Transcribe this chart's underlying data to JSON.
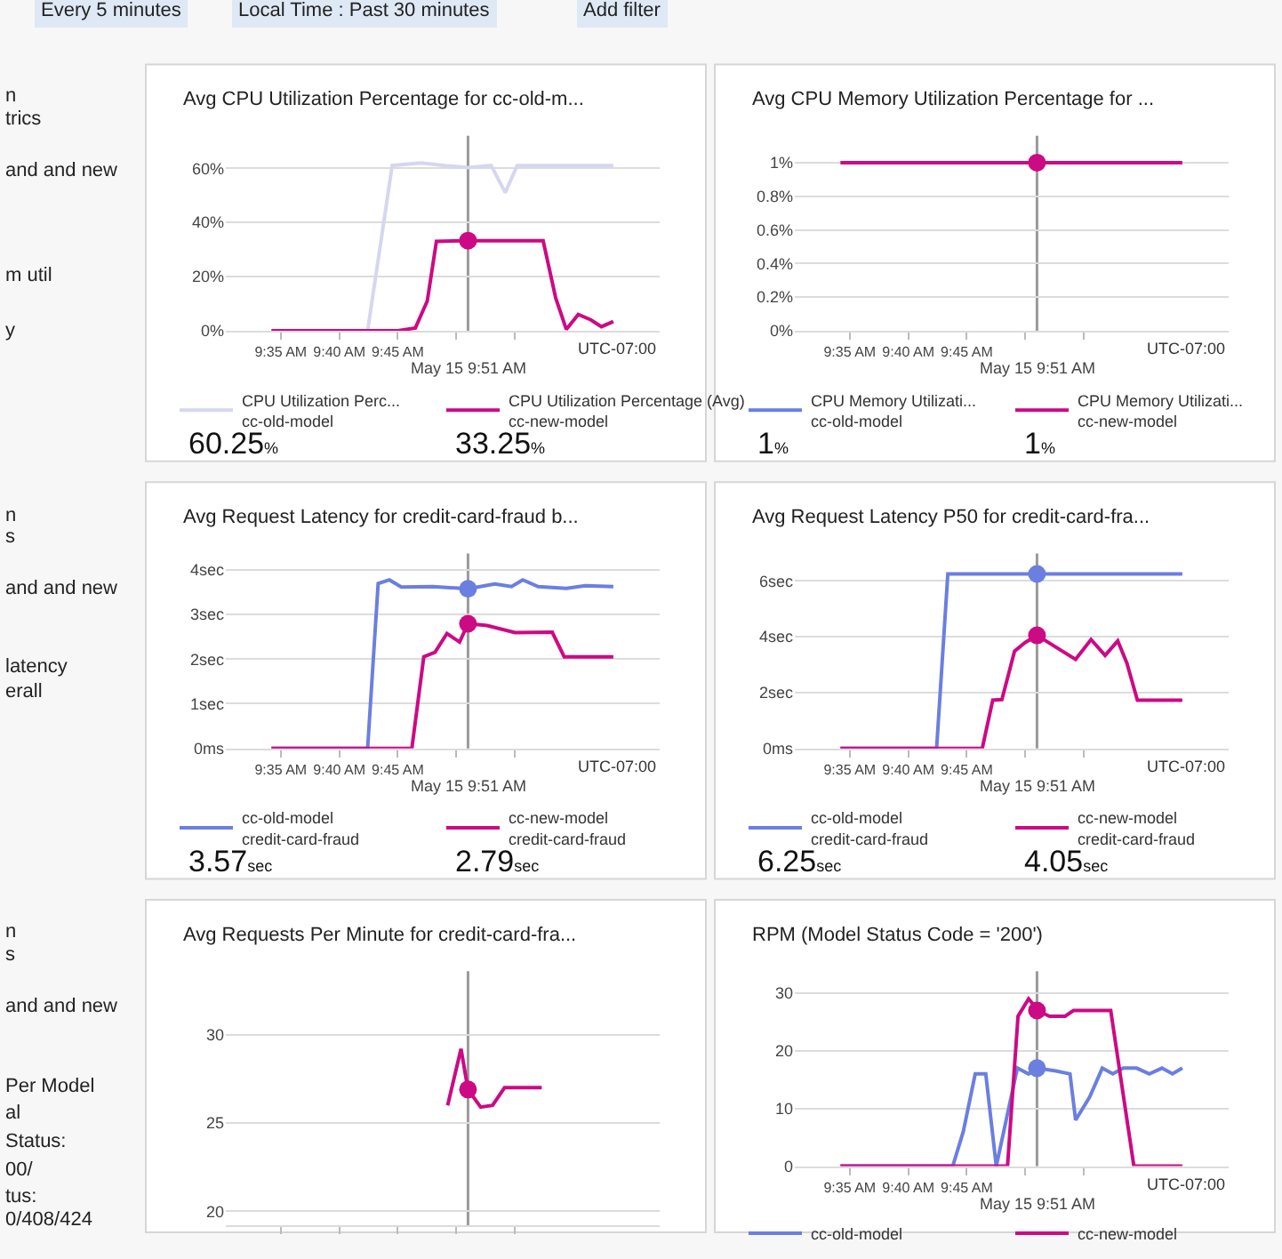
{
  "chart_data": [
    {
      "type": "line",
      "title": "Avg CPU Utilization Percentage for cc-old-m...",
      "xlim": [
        9.505,
        10.123
      ],
      "xticks": [
        {
          "value": 9.5833,
          "label": "9:35 AM"
        },
        {
          "value": 9.6667,
          "label": "9:40 AM"
        },
        {
          "value": 9.75,
          "label": "9:45 AM"
        },
        {
          "value": 9.8333,
          "label": null
        },
        {
          "value": 9.9167,
          "label": null
        }
      ],
      "ylim": [
        0,
        72
      ],
      "yticks": [
        {
          "value": 0,
          "label": "0%"
        },
        {
          "value": 20,
          "label": "20%"
        },
        {
          "value": 40,
          "label": "40%"
        },
        {
          "value": 60,
          "label": "60%"
        }
      ],
      "grid": "y",
      "legend": "bottom",
      "series": [
        {
          "name": "CPU Utilization Perc...\ncc-old-model",
          "color": "#d5d7f0",
          "x": [
            9.57,
            9.707,
            9.742,
            9.783,
            9.817,
            9.85,
            9.883,
            9.903,
            9.92,
            9.983,
            10.057
          ],
          "values": [
            0,
            0,
            61,
            62,
            61,
            60.25,
            61,
            51,
            61,
            61,
            61
          ]
        },
        {
          "name": "CPU Utilization Percentage (Avg)\ncc-new-model",
          "color": "#cc0a84",
          "x": [
            9.57,
            9.75,
            9.775,
            9.792,
            9.805,
            9.85,
            9.957,
            9.975,
            9.99,
            10.007,
            10.025,
            10.04,
            10.057
          ],
          "values": [
            0,
            0,
            1,
            11,
            33,
            33.25,
            33.2,
            12,
            0.5,
            6,
            4,
            1.5,
            3.4
          ]
        },
        {
          "type": "scatter",
          "color": "#cc0a84",
          "x": [
            9.85
          ],
          "values": [
            33.25
          ]
        }
      ],
      "ref_lines": [
        {
          "axis": "x",
          "value": 9.85,
          "color": "#9a9a9a"
        }
      ],
      "annotations": [
        "UTC-07:00",
        "May 15 9:51 AM",
        "60.25%",
        "33.25%"
      ]
    },
    {
      "type": "line",
      "title": "Avg CPU Memory Utilization Percentage for ...",
      "xlim": [
        9.505,
        10.123
      ],
      "xticks": [
        {
          "value": 9.5833,
          "label": "9:35 AM"
        },
        {
          "value": 9.6667,
          "label": "9:40 AM"
        },
        {
          "value": 9.75,
          "label": "9:45 AM"
        },
        {
          "value": 9.8333,
          "label": null
        },
        {
          "value": 9.9167,
          "label": null
        }
      ],
      "ylim": [
        0,
        1.16
      ],
      "yticks": [
        {
          "value": 0,
          "label": "0%"
        },
        {
          "value": 0.2,
          "label": "0.2%"
        },
        {
          "value": 0.4,
          "label": "0.4%"
        },
        {
          "value": 0.6,
          "label": "0.6%"
        },
        {
          "value": 0.8,
          "label": "0.8%"
        },
        {
          "value": 1,
          "label": "1%"
        }
      ],
      "grid": "y",
      "legend": "bottom",
      "series": [
        {
          "name": "CPU Memory Utilizati...\ncc-old-model",
          "color": "#6b7fe0",
          "values": [
            null
          ]
        },
        {
          "name": "CPU Memory Utilizati...\ncc-new-model",
          "color": "#cc0a84",
          "x": [
            9.57,
            10.057
          ],
          "values": [
            1,
            1
          ]
        },
        {
          "type": "scatter",
          "color": "#cc0a84",
          "x": [
            9.85
          ],
          "values": [
            1
          ]
        }
      ],
      "ref_lines": [
        {
          "axis": "x",
          "value": 9.85,
          "color": "#9a9a9a"
        }
      ],
      "annotations": [
        "UTC-07:00",
        "May 15 9:51 AM",
        "1%",
        "1%"
      ]
    },
    {
      "type": "line",
      "title": "Avg Request Latency for credit-card-fraud b...",
      "xlim": [
        9.505,
        10.123
      ],
      "xticks": [
        {
          "value": 9.5833,
          "label": "9:35 AM"
        },
        {
          "value": 9.6667,
          "label": "9:40 AM"
        },
        {
          "value": 9.75,
          "label": "9:45 AM"
        },
        {
          "value": 9.8333,
          "label": null
        },
        {
          "value": 9.9167,
          "label": null
        }
      ],
      "ylim": [
        0,
        4.36
      ],
      "yticks": [
        {
          "value": 0,
          "label": "0ms"
        },
        {
          "value": 1,
          "label": "1sec"
        },
        {
          "value": 2,
          "label": "2sec"
        },
        {
          "value": 3,
          "label": "3sec"
        },
        {
          "value": 4,
          "label": "4sec"
        }
      ],
      "grid": "y",
      "legend": "bottom",
      "series": [
        {
          "name": "cc-old-model\ncredit-card-fraud",
          "color": "#6b7fe0",
          "x": [
            9.57,
            9.707,
            9.722,
            9.738,
            9.755,
            9.8,
            9.85,
            9.888,
            9.912,
            9.928,
            9.95,
            9.99,
            10.017,
            10.057
          ],
          "values": [
            0,
            0,
            3.69,
            3.77,
            3.61,
            3.62,
            3.57,
            3.68,
            3.62,
            3.77,
            3.62,
            3.58,
            3.64,
            3.62
          ]
        },
        {
          "name": "cc-new-model\ncredit-card-fraud",
          "color": "#cc0a84",
          "x": [
            9.57,
            9.77,
            9.787,
            9.803,
            9.82,
            9.838,
            9.85,
            9.877,
            9.917,
            9.97,
            9.987,
            10.057
          ],
          "values": [
            0,
            0,
            2.05,
            2.15,
            2.57,
            2.38,
            2.79,
            2.75,
            2.59,
            2.6,
            2.05,
            2.05
          ]
        },
        {
          "type": "scatter",
          "color": "#6b7fe0",
          "x": [
            9.85
          ],
          "values": [
            3.57
          ]
        },
        {
          "type": "scatter",
          "color": "#cc0a84",
          "x": [
            9.85
          ],
          "values": [
            2.79
          ]
        }
      ],
      "ref_lines": [
        {
          "axis": "x",
          "value": 9.85,
          "color": "#9a9a9a"
        }
      ],
      "annotations": [
        "UTC-07:00",
        "May 15 9:51 AM",
        "3.57sec",
        "2.79sec"
      ]
    },
    {
      "type": "line",
      "title": "Avg Request Latency P50 for credit-card-fra...",
      "xlim": [
        9.505,
        10.123
      ],
      "xticks": [
        {
          "value": 9.5833,
          "label": "9:35 AM"
        },
        {
          "value": 9.6667,
          "label": "9:40 AM"
        },
        {
          "value": 9.75,
          "label": "9:45 AM"
        },
        {
          "value": 9.8333,
          "label": null
        },
        {
          "value": 9.9167,
          "label": null
        }
      ],
      "ylim": [
        0,
        6.98
      ],
      "yticks": [
        {
          "value": 0,
          "label": "0ms"
        },
        {
          "value": 2,
          "label": "2sec"
        },
        {
          "value": 4,
          "label": "4sec"
        },
        {
          "value": 6,
          "label": "6sec"
        }
      ],
      "grid": "y",
      "legend": "bottom",
      "series": [
        {
          "name": "cc-old-model\ncredit-card-fraud",
          "color": "#6b7fe0",
          "x": [
            9.57,
            9.707,
            9.723,
            9.85,
            10.057
          ],
          "values": [
            0,
            0,
            6.25,
            6.25,
            6.25
          ]
        },
        {
          "name": "cc-new-model\ncredit-card-fraud",
          "color": "#cc0a84",
          "x": [
            9.57,
            9.772,
            9.787,
            9.8,
            9.818,
            9.833,
            9.85,
            9.905,
            9.927,
            9.947,
            9.965,
            9.978,
            9.993,
            10.057
          ],
          "values": [
            0,
            0,
            1.73,
            1.75,
            3.48,
            3.79,
            4.05,
            3.19,
            3.9,
            3.33,
            3.85,
            3.06,
            1.73,
            1.73
          ]
        },
        {
          "type": "scatter",
          "color": "#6b7fe0",
          "x": [
            9.85
          ],
          "values": [
            6.25
          ]
        },
        {
          "type": "scatter",
          "color": "#cc0a84",
          "x": [
            9.85
          ],
          "values": [
            4.05
          ]
        }
      ],
      "ref_lines": [
        {
          "axis": "x",
          "value": 9.85,
          "color": "#9a9a9a"
        }
      ],
      "annotations": [
        "UTC-07:00",
        "May 15 9:51 AM",
        "6.25sec",
        "4.05sec"
      ]
    },
    {
      "type": "line",
      "title": "Avg Requests Per Minute for credit-card-fra...",
      "xlim": [
        9.505,
        10.123
      ],
      "xticks": [
        {
          "value": 9.5833,
          "label": null
        },
        {
          "value": 9.6667,
          "label": null
        },
        {
          "value": 9.75,
          "label": null
        },
        {
          "value": 9.8333,
          "label": null
        },
        {
          "value": 9.9167,
          "label": null
        }
      ],
      "ylim": [
        19.2,
        33.6
      ],
      "yticks": [
        20,
        25,
        30
      ],
      "grid": "y",
      "tick_labels": "y",
      "series": [
        {
          "color": "#cc0a84",
          "x": [
            9.821,
            9.84,
            9.85,
            9.868,
            9.885,
            9.902,
            9.955
          ],
          "values": [
            26,
            29.2,
            26.9,
            25.9,
            26,
            27,
            27
          ]
        },
        {
          "type": "scatter",
          "color": "#cc0a84",
          "x": [
            9.85
          ],
          "values": [
            26.9
          ]
        }
      ],
      "ref_lines": [
        {
          "axis": "x",
          "value": 9.85,
          "color": "#9a9a9a"
        }
      ]
    },
    {
      "type": "line",
      "title": "RPM (Model Status Code = '200')",
      "xlim": [
        9.505,
        10.123
      ],
      "xticks": [
        {
          "value": 9.5833,
          "label": "9:35 AM"
        },
        {
          "value": 9.6667,
          "label": "9:40 AM"
        },
        {
          "value": 9.75,
          "label": "9:45 AM"
        },
        {
          "value": 9.8333,
          "label": null
        },
        {
          "value": 9.9167,
          "label": null
        }
      ],
      "ylim": [
        0,
        33.8
      ],
      "yticks": [
        0,
        10,
        20,
        30
      ],
      "grid": "y",
      "legend": "bottom",
      "series": [
        {
          "name": "cc-old-model",
          "color": "#6b7fe0",
          "x": [
            9.57,
            9.73,
            9.745,
            9.762,
            9.777,
            9.792,
            9.822,
            9.838,
            9.85,
            9.877,
            9.897,
            9.905,
            9.925,
            9.943,
            9.958,
            9.973,
            9.992,
            10.01,
            10.028,
            10.043,
            10.057
          ],
          "values": [
            0,
            0,
            6,
            16,
            16,
            0,
            17,
            16,
            17,
            16.5,
            16,
            8,
            12,
            17,
            16,
            17,
            17,
            16,
            17,
            16,
            17
          ]
        },
        {
          "name": "cc-new-model",
          "color": "#cc0a84",
          "x": [
            9.57,
            9.808,
            9.823,
            9.838,
            9.845,
            9.85,
            9.868,
            9.89,
            9.902,
            9.955,
            9.988,
            10.057
          ],
          "values": [
            0,
            0,
            26,
            29,
            28,
            27,
            26,
            26,
            27,
            27,
            0,
            0
          ]
        },
        {
          "type": "scatter",
          "color": "#6b7fe0",
          "x": [
            9.85
          ],
          "values": [
            17
          ]
        },
        {
          "type": "scatter",
          "color": "#cc0a84",
          "x": [
            9.85
          ],
          "values": [
            27
          ]
        }
      ],
      "ref_lines": [
        {
          "axis": "x",
          "value": 9.85,
          "color": "#9a9a9a"
        }
      ],
      "annotations": [
        "UTC-07:00",
        "May 15 9:51 AM"
      ]
    },
    {
      "type": "other",
      "annotations": [
        "Every 5 minutes",
        "Local Time : Past 30 minutes",
        "Add filter",
        "n",
        "trics",
        "and and new",
        "m util",
        "y",
        "n",
        "s",
        "and and new",
        "latency",
        "erall",
        "n",
        "s",
        "and and new",
        "Per Model",
        "al",
        "Status:",
        "00/",
        "tus:",
        "0/408/424"
      ]
    }
  ]
}
